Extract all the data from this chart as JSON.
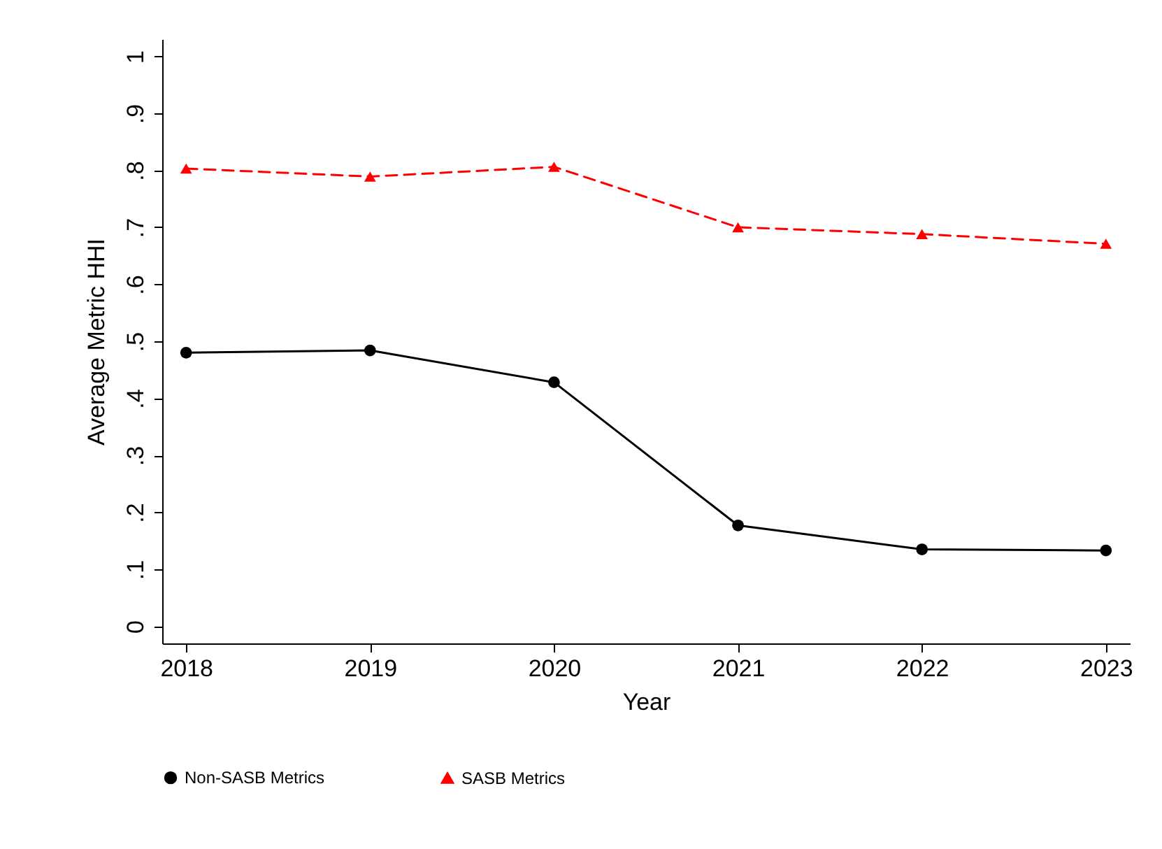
{
  "chart_data": {
    "type": "line",
    "xlabel": "Year",
    "ylabel": "Average Metric HHI",
    "x": [
      2018,
      2019,
      2020,
      2021,
      2022,
      2023
    ],
    "series": [
      {
        "name": "Non-SASB Metrics",
        "color": "#000000",
        "marker": "circle",
        "line_style": "solid",
        "values": [
          0.48,
          0.484,
          0.428,
          0.177,
          0.135,
          0.133
        ]
      },
      {
        "name": "SASB Metrics",
        "color": "#ff0000",
        "marker": "triangle",
        "line_style": "dashed",
        "values": [
          0.803,
          0.789,
          0.806,
          0.7,
          0.688,
          0.671
        ]
      }
    ],
    "xlim": [
      2017.87,
      2023.13
    ],
    "xticks": [
      2018,
      2019,
      2020,
      2021,
      2022,
      2023
    ],
    "ylim": [
      -0.03,
      1.03
    ],
    "yticks": [
      {
        "value": 0,
        "label": "0"
      },
      {
        "value": 0.1,
        "label": ".1"
      },
      {
        "value": 0.2,
        "label": ".2"
      },
      {
        "value": 0.3,
        "label": ".3"
      },
      {
        "value": 0.4,
        "label": ".4"
      },
      {
        "value": 0.5,
        "label": ".5"
      },
      {
        "value": 0.6,
        "label": ".6"
      },
      {
        "value": 0.7,
        "label": ".7"
      },
      {
        "value": 0.8,
        "label": ".8"
      },
      {
        "value": 0.9,
        "label": ".9"
      },
      {
        "value": 1,
        "label": "1"
      }
    ],
    "grid": false,
    "legend": "bottom"
  }
}
